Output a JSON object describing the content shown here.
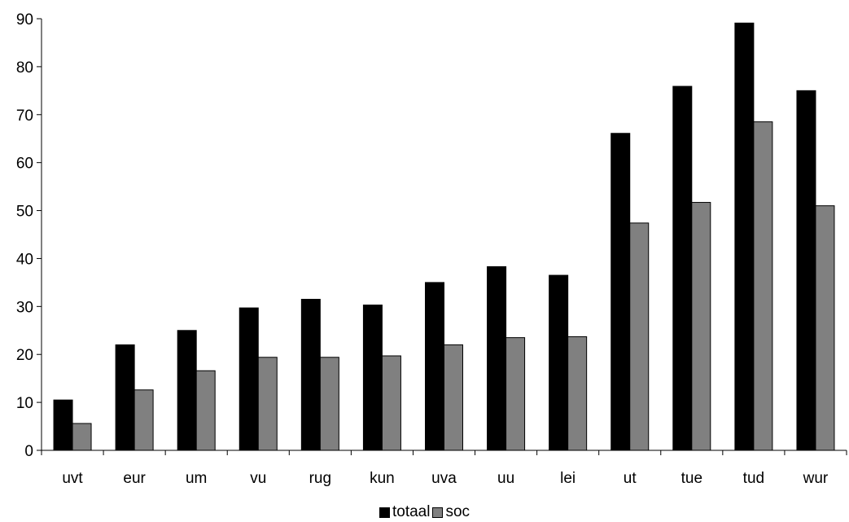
{
  "chart_data": {
    "type": "bar",
    "categories": [
      "uvt",
      "eur",
      "um",
      "vu",
      "rug",
      "kun",
      "uva",
      "uu",
      "lei",
      "ut",
      "tue",
      "tud",
      "wur"
    ],
    "series": [
      {
        "name": "totaal",
        "color": "#000000",
        "values": [
          10.5,
          22,
          25,
          29.7,
          31.5,
          30.3,
          35,
          38.3,
          36.5,
          66.1,
          75.9,
          89.1,
          75
        ]
      },
      {
        "name": "soc",
        "color": "#808080",
        "values": [
          5.6,
          12.6,
          16.6,
          19.4,
          19.4,
          19.7,
          22,
          23.5,
          23.7,
          47.4,
          51.7,
          68.5,
          51
        ]
      }
    ],
    "ylim": [
      0,
      90
    ],
    "yticks": [
      "0",
      "10",
      "20",
      "30",
      "40",
      "50",
      "60",
      "70",
      "80",
      "90"
    ],
    "grid": false,
    "legend_position": "bottom"
  }
}
